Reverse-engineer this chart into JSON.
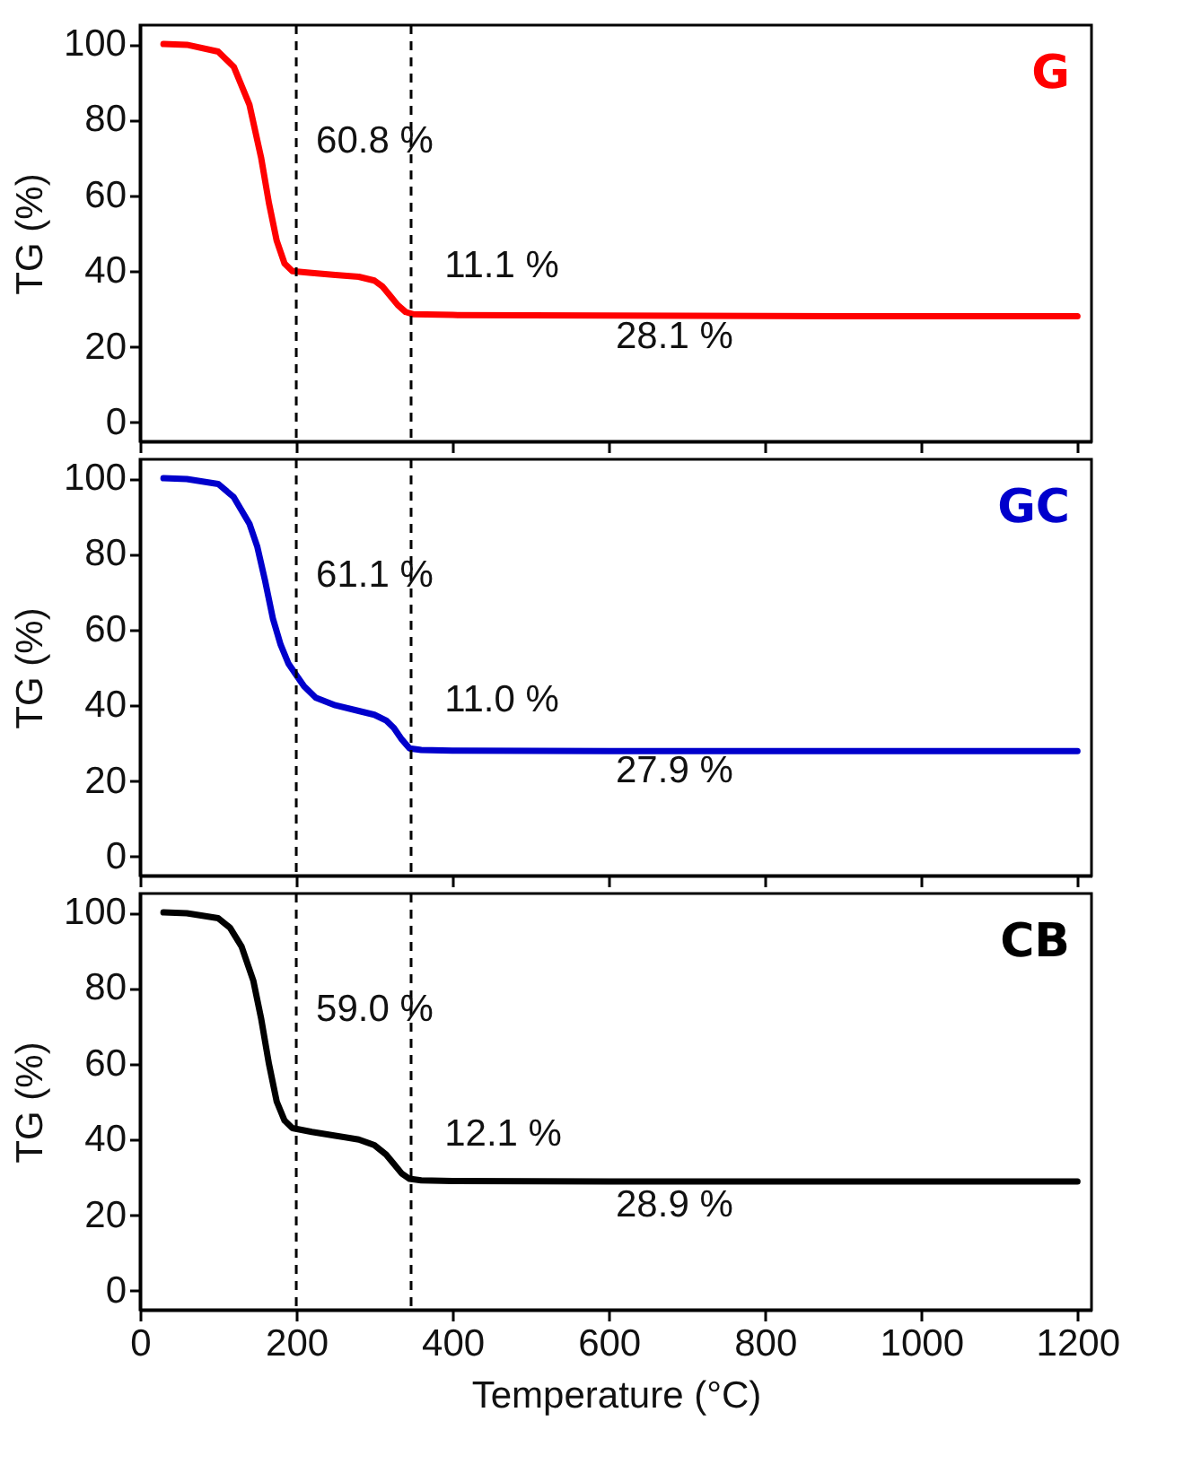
{
  "chart_data": [
    {
      "type": "line",
      "ylabel": "TG (%)",
      "xlim": [
        0,
        1218
      ],
      "ylim": [
        -5,
        105
      ],
      "xticks": [
        0,
        200,
        400,
        600,
        800,
        1000,
        1200
      ],
      "yticks": [
        0,
        20,
        40,
        60,
        80,
        100
      ],
      "tick_labels": "y",
      "series": [
        {
          "name": "G",
          "color": "#ff0000",
          "x": [
            30,
            60,
            100,
            120,
            140,
            155,
            165,
            175,
            185,
            195,
            220,
            250,
            280,
            300,
            310,
            320,
            330,
            340,
            350,
            400,
            500,
            700,
            900,
            1200
          ],
          "values": [
            100,
            99.8,
            98,
            94,
            84,
            70,
            58,
            48,
            42,
            40,
            39.5,
            39,
            38.5,
            37.5,
            36,
            33.5,
            31,
            29.2,
            28.6,
            28.4,
            28.3,
            28.2,
            28.1,
            28.1
          ]
        }
      ],
      "ref_lines": [
        {
          "axis": "x",
          "value": 200,
          "line_style": "dashed",
          "color": "#000000"
        },
        {
          "axis": "x",
          "value": 347,
          "line_style": "dashed",
          "color": "#000000"
        }
      ],
      "annotations": [
        "60.8 %",
        "11.1 %",
        "28.1 %"
      ]
    },
    {
      "type": "line",
      "ylabel": "TG (%)",
      "xlim": [
        0,
        1218
      ],
      "ylim": [
        -5,
        105
      ],
      "xticks": [
        0,
        200,
        400,
        600,
        800,
        1000,
        1200
      ],
      "yticks": [
        0,
        20,
        40,
        60,
        80,
        100
      ],
      "tick_labels": "y",
      "series": [
        {
          "name": "GC",
          "color": "#0000cc",
          "x": [
            30,
            60,
            100,
            120,
            140,
            150,
            160,
            170,
            180,
            190,
            200,
            210,
            225,
            250,
            280,
            300,
            315,
            325,
            335,
            345,
            360,
            400,
            600,
            900,
            1200
          ],
          "values": [
            100,
            99.8,
            98.5,
            95,
            88,
            82,
            73,
            63,
            56,
            51,
            48,
            45,
            42,
            40,
            38.5,
            37.5,
            36,
            34,
            31,
            28.6,
            28.2,
            28,
            27.9,
            27.9,
            27.9
          ]
        }
      ],
      "ref_lines": [
        {
          "axis": "x",
          "value": 200,
          "line_style": "dashed",
          "color": "#000000"
        },
        {
          "axis": "x",
          "value": 347,
          "line_style": "dashed",
          "color": "#000000"
        }
      ],
      "annotations": [
        "61.1 %",
        "11.0 %",
        "27.9 %"
      ]
    },
    {
      "type": "line",
      "ylabel": "TG (%)",
      "xlabel": "Temperature (°C)",
      "xlim": [
        0,
        1218
      ],
      "ylim": [
        -5,
        105
      ],
      "xticks": [
        0,
        200,
        400,
        600,
        800,
        1000,
        1200
      ],
      "yticks": [
        0,
        20,
        40,
        60,
        80,
        100
      ],
      "series": [
        {
          "name": "CB",
          "color": "#000000",
          "x": [
            30,
            60,
            100,
            115,
            130,
            145,
            155,
            165,
            175,
            185,
            195,
            220,
            250,
            280,
            300,
            315,
            325,
            335,
            345,
            360,
            400,
            600,
            900,
            1200
          ],
          "values": [
            100,
            99.8,
            98.5,
            96,
            91,
            82,
            72,
            60,
            50,
            45,
            43,
            42,
            41,
            40,
            38.5,
            36,
            33.5,
            31,
            29.6,
            29.2,
            29,
            28.9,
            28.9,
            28.9
          ]
        }
      ],
      "ref_lines": [
        {
          "axis": "x",
          "value": 200,
          "line_style": "dashed",
          "color": "#000000"
        },
        {
          "axis": "x",
          "value": 347,
          "line_style": "dashed",
          "color": "#000000"
        }
      ],
      "annotations": [
        "59.0 %",
        "12.1 %",
        "28.9 %"
      ]
    }
  ]
}
